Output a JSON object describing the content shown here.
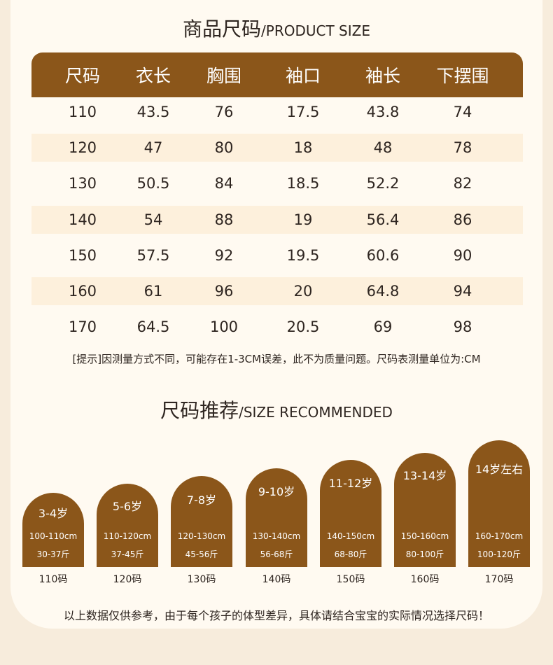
{
  "product_size": {
    "title_cn": "商品尺码",
    "title_en": "/PRODUCT SIZE"
  },
  "table": {
    "headers": [
      "尺码",
      "衣长",
      "胸围",
      "袖口",
      "袖长",
      "下摆围"
    ],
    "rows": [
      [
        "110",
        "43.5",
        "76",
        "17.5",
        "43.8",
        "74"
      ],
      [
        "120",
        "47",
        "80",
        "18",
        "48",
        "78"
      ],
      [
        "130",
        "50.5",
        "84",
        "18.5",
        "52.2",
        "82"
      ],
      [
        "140",
        "54",
        "88",
        "19",
        "56.4",
        "86"
      ],
      [
        "150",
        "57.5",
        "92",
        "19.5",
        "60.6",
        "90"
      ],
      [
        "160",
        "61",
        "96",
        "20",
        "64.8",
        "94"
      ],
      [
        "170",
        "64.5",
        "100",
        "20.5",
        "69",
        "98"
      ]
    ]
  },
  "tip": "[提示]因测量方式不同，可能存在1-3CM误差，此不为质量问题。尺码表测量单位为:CM",
  "size_recommended": {
    "title_cn": "尺码推荐",
    "title_en": "/SIZE RECOMMENDED"
  },
  "recommendations": [
    {
      "age": "3-4岁",
      "height": "100-110cm",
      "weight": "30-37斤",
      "size": "110码"
    },
    {
      "age": "5-6岁",
      "height": "110-120cm",
      "weight": "37-45斤",
      "size": "120码"
    },
    {
      "age": "7-8岁",
      "height": "120-130cm",
      "weight": "45-56斤",
      "size": "130码"
    },
    {
      "age": "9-10岁",
      "height": "130-140cm",
      "weight": "56-68斤",
      "size": "140码"
    },
    {
      "age": "11-12岁",
      "height": "140-150cm",
      "weight": "68-80斤",
      "size": "150码"
    },
    {
      "age": "13-14岁",
      "height": "150-160cm",
      "weight": "80-100斤",
      "size": "160码"
    },
    {
      "age": "14岁左右",
      "height": "160-170cm",
      "weight": "100-120斤",
      "size": "170码"
    }
  ],
  "footer": "以上数据仅供参考，由于每个孩子的体型差异，具体请结合宝宝的实际情况选择尺码！",
  "colors": {
    "brown": "#8b561a",
    "stripe": "#fdf0dc",
    "card": "#fffaf1",
    "background": "#f7ecdc",
    "text": "#2e2520"
  }
}
